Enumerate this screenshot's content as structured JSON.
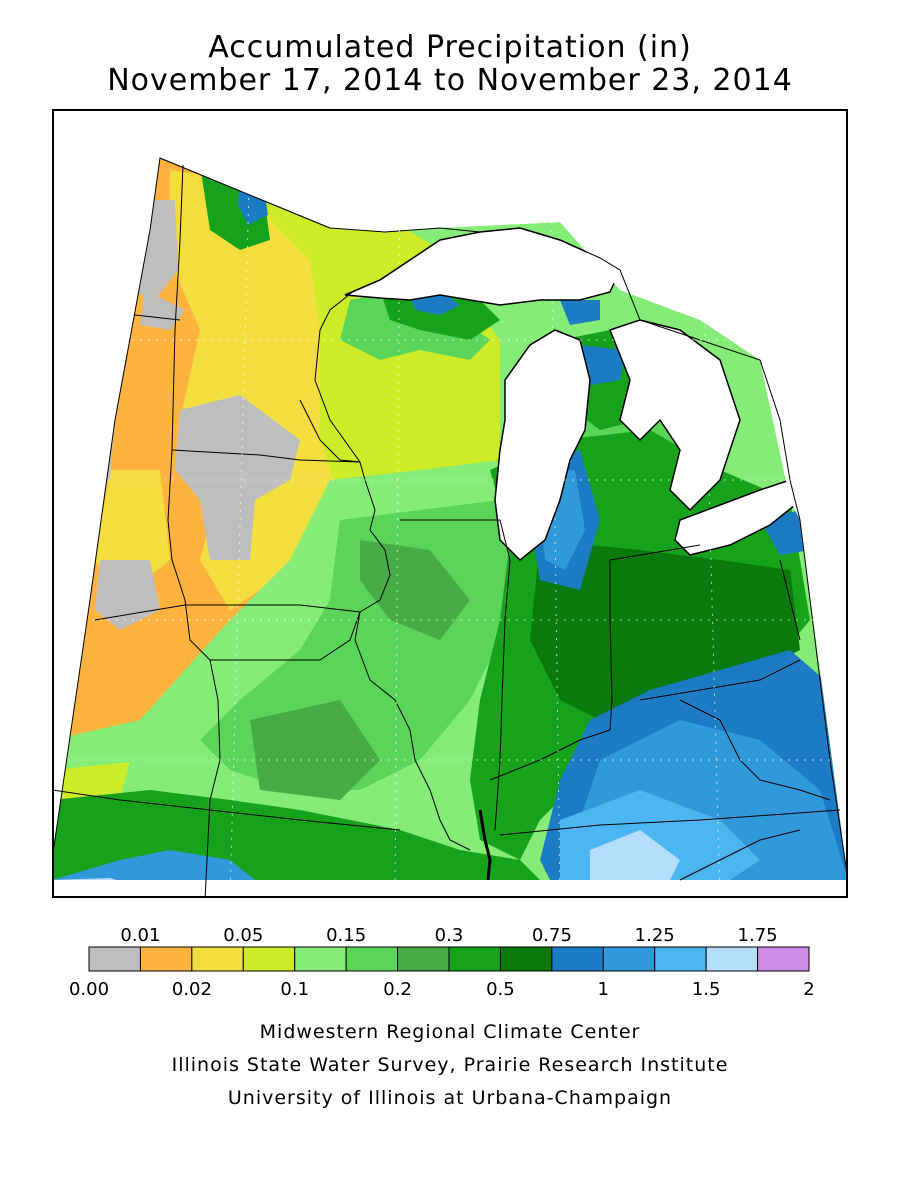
{
  "title": {
    "line1": "Accumulated Precipitation (in)",
    "line2": "November 17, 2014 to November 23, 2014"
  },
  "legend": {
    "upper_labels": [
      "0.01",
      "0.05",
      "0.15",
      "0.3",
      "0.75",
      "1.25",
      "1.75"
    ],
    "lower_labels": [
      "0.00",
      "0.02",
      "0.1",
      "0.2",
      "0.5",
      "1",
      "1.5",
      "2"
    ],
    "colors": [
      "#bebebe",
      "#ffb33f",
      "#f2df3f",
      "#cdeb26",
      "#85ec77",
      "#5bd45a",
      "#47ab46",
      "#16a21b",
      "#0a7a0c",
      "#1b7cc4",
      "#3099d9",
      "#4cb6f0",
      "#b4dcfb",
      "#d08ae8"
    ]
  },
  "credits": {
    "line1": "Midwestern Regional Climate Center",
    "line2": "Illinois State Water Survey, Prairie Research Institute",
    "line3": "University of Illinois at Urbana-Champaign"
  }
}
